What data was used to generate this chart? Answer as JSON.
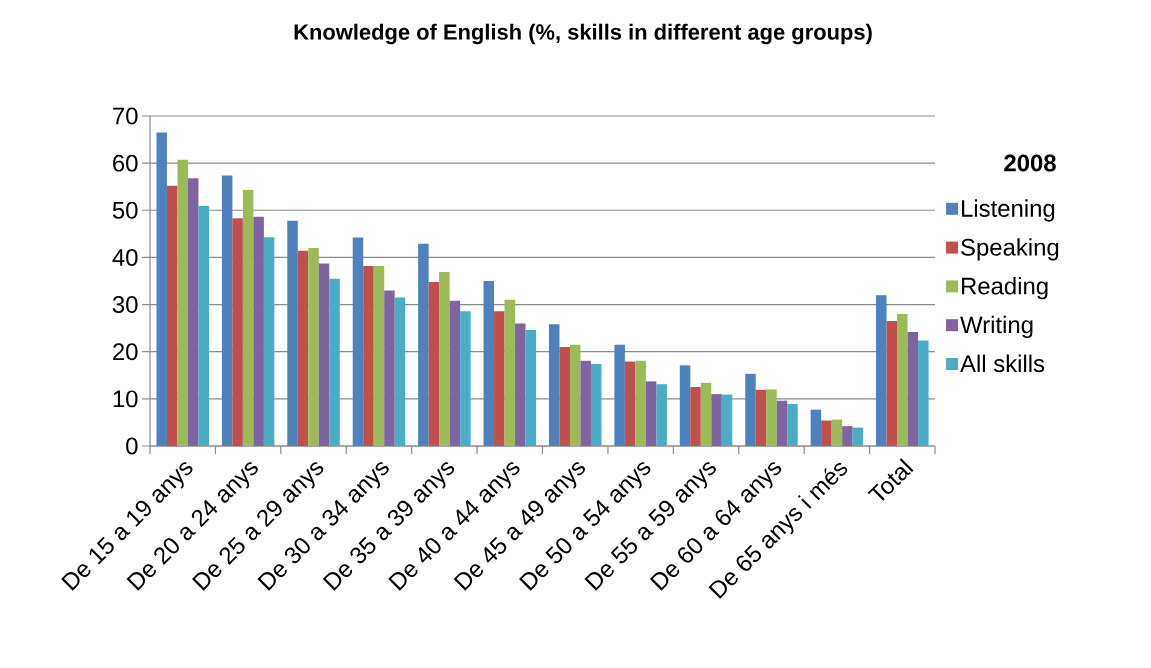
{
  "chart_data": {
    "type": "bar",
    "title": "Knowledge of English (%, skills in different age groups)",
    "legend_title": "2008",
    "categories": [
      "De 15 a 19 anys",
      "De 20 a 24 anys",
      "De 25 a 29 anys",
      "De 30 a 34 anys",
      "De 35 a 39 anys",
      "De 40 a 44 anys",
      "De 45 a 49 anys",
      "De 50 a 54 anys",
      "De 55 a 59 anys",
      "De 60 a 64 anys",
      "De 65 anys i més",
      "Total"
    ],
    "series": [
      {
        "name": "Listening",
        "color": "#4f81bd",
        "values": [
          66.5,
          57.4,
          47.8,
          44.2,
          42.9,
          35.0,
          25.8,
          21.5,
          17.1,
          15.3,
          7.7,
          32.0
        ]
      },
      {
        "name": "Speaking",
        "color": "#c0504d",
        "values": [
          55.2,
          48.3,
          41.4,
          38.2,
          34.8,
          28.6,
          21.0,
          17.9,
          12.5,
          11.9,
          5.4,
          26.5
        ]
      },
      {
        "name": "Reading",
        "color": "#9bbb59",
        "values": [
          60.7,
          54.3,
          42.0,
          38.2,
          36.9,
          31.0,
          21.5,
          18.1,
          13.4,
          12.0,
          5.6,
          28.0
        ]
      },
      {
        "name": "Writing",
        "color": "#8064a2",
        "values": [
          56.8,
          48.6,
          38.7,
          33.0,
          30.8,
          26.0,
          18.1,
          13.7,
          11.0,
          9.6,
          4.2,
          24.2
        ]
      },
      {
        "name": "All skills",
        "color": "#4bacc6",
        "values": [
          50.9,
          44.3,
          35.5,
          31.5,
          28.6,
          24.6,
          17.4,
          13.1,
          10.9,
          8.9,
          3.9,
          22.4
        ]
      }
    ],
    "ylim": [
      0,
      70
    ],
    "yticks": [
      0,
      10,
      20,
      30,
      40,
      50,
      60,
      70
    ],
    "grid": "y",
    "legend": "right"
  }
}
